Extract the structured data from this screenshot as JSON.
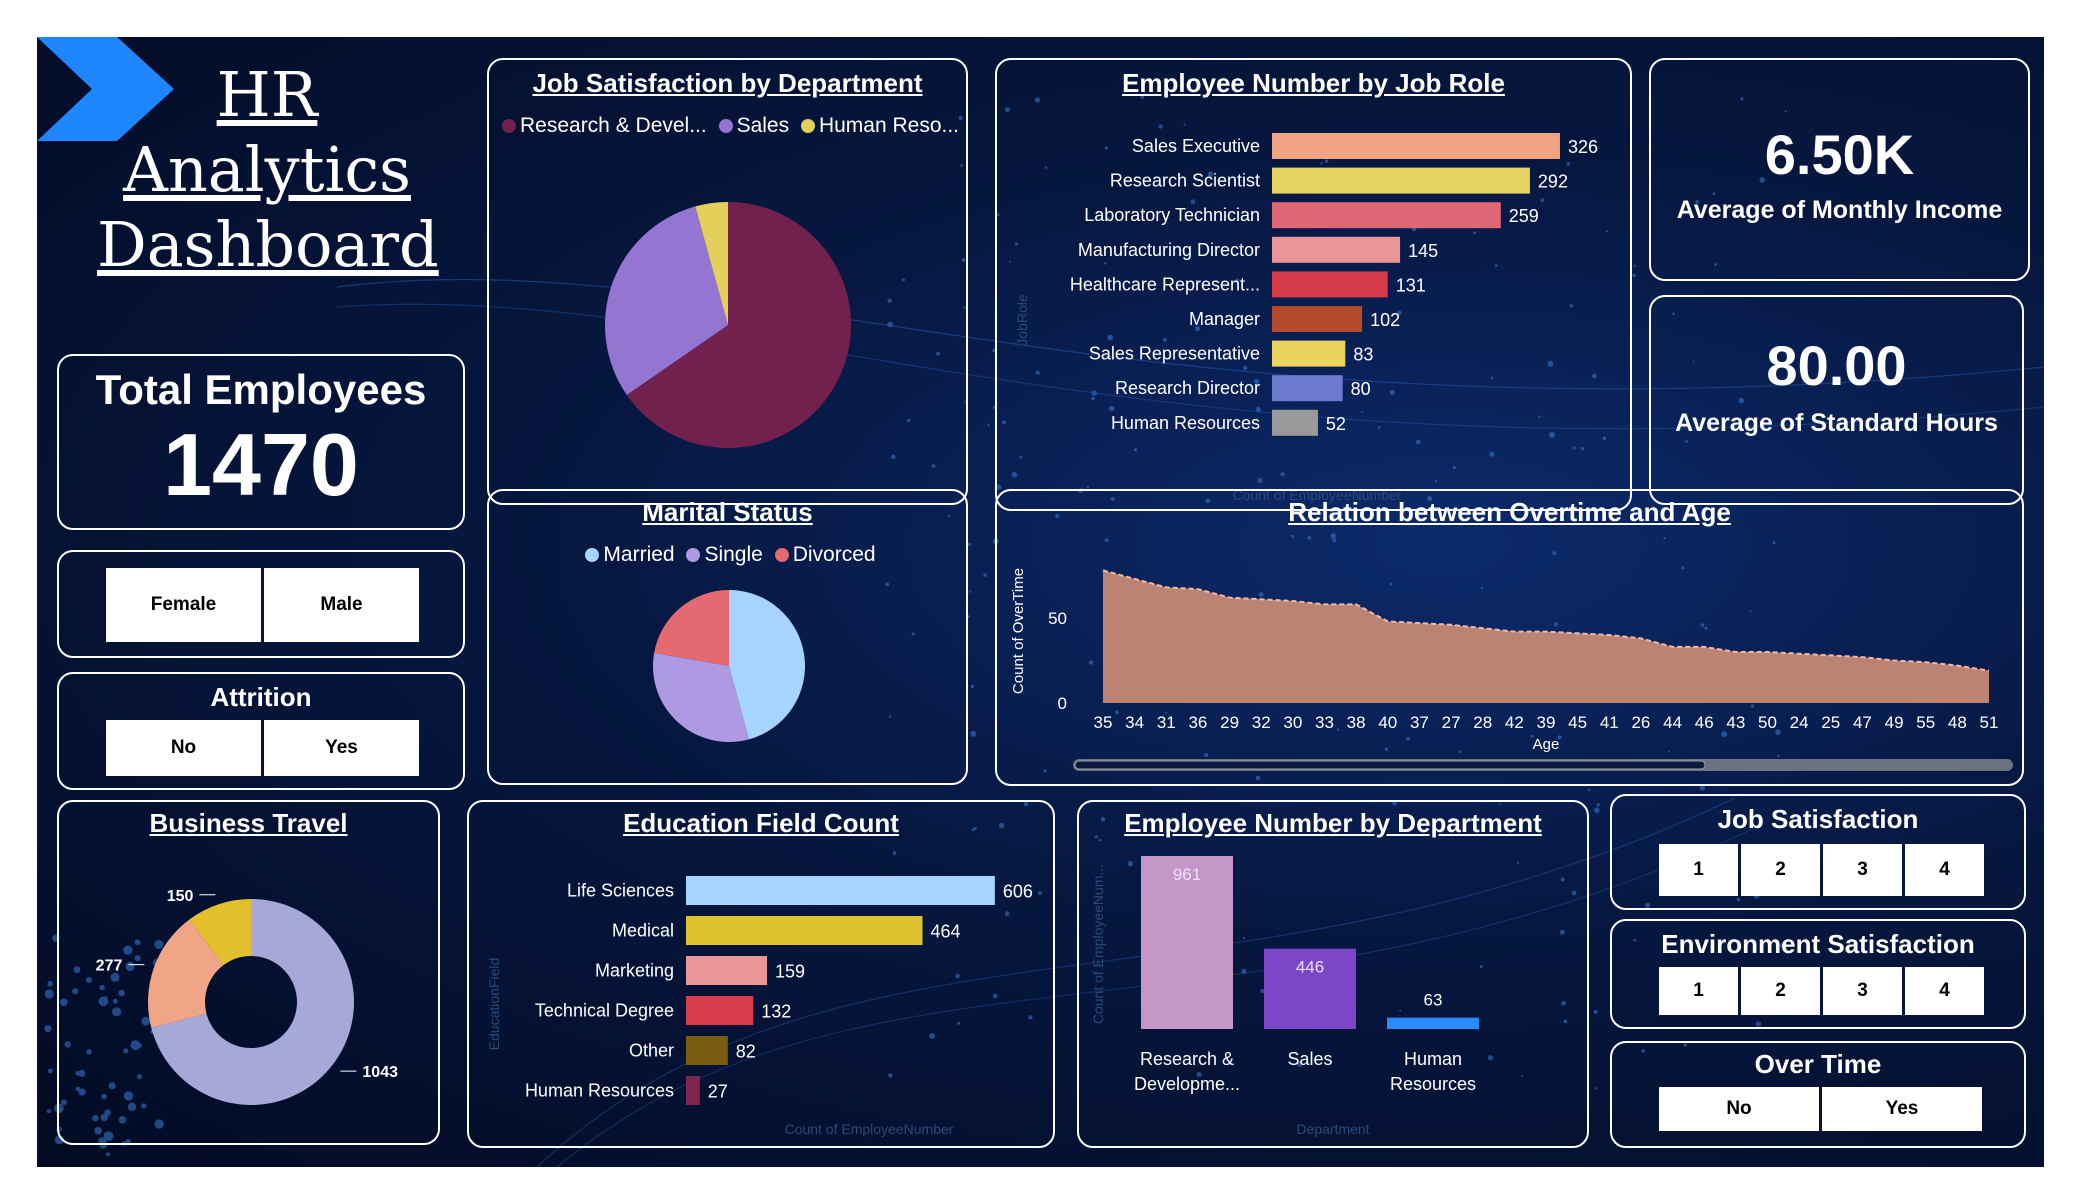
{
  "header": {
    "title_lines": [
      "HR",
      "Analytics",
      "Dashboard"
    ]
  },
  "total_employees": {
    "label": "Total Employees",
    "value": "1470"
  },
  "gender_slicer": {
    "options": [
      "Female",
      "Male"
    ]
  },
  "attrition_slicer": {
    "title": "Attrition",
    "options": [
      "No",
      "Yes"
    ]
  },
  "kpi_income": {
    "value": "6.50K",
    "label": "Average of Monthly Income"
  },
  "kpi_hours": {
    "value": "80.00",
    "label": "Average of Standard Hours"
  },
  "job_satisfaction_slicer": {
    "title": "Job Satisfaction",
    "options": [
      "1",
      "2",
      "3",
      "4"
    ]
  },
  "environment_slicer": {
    "title": "Environment Satisfaction",
    "options": [
      "1",
      "2",
      "3",
      "4"
    ]
  },
  "overtime_slicer": {
    "title": "Over Time",
    "options": [
      "No",
      "Yes"
    ]
  },
  "colors": {
    "background": "#06173f",
    "accent_arrow": "#1e86ff"
  },
  "chart_data": [
    {
      "id": "job_satisfaction_by_department",
      "type": "pie",
      "title": "Job Satisfaction by Department",
      "legend_labels": [
        "Research & Devel...",
        "Sales",
        "Human Reso..."
      ],
      "slices": [
        {
          "name": "Research & Development",
          "value": 961,
          "color": "#72214f"
        },
        {
          "name": "Sales",
          "value": 446,
          "color": "#9575d2"
        },
        {
          "name": "Human Resources",
          "value": 63,
          "color": "#e4cf5a"
        }
      ]
    },
    {
      "id": "employee_number_by_job_role",
      "type": "bar",
      "orientation": "horizontal",
      "title": "Employee Number by Job Role",
      "ylabel": "JobRole",
      "xlabel": "Count of EmployeeNumber",
      "categories": [
        "Sales Executive",
        "Research Scientist",
        "Laboratory Technician",
        "Manufacturing Director",
        "Healthcare Represent...",
        "Manager",
        "Sales Representative",
        "Research Director",
        "Human Resources"
      ],
      "values": [
        326,
        292,
        259,
        145,
        131,
        102,
        83,
        80,
        52
      ],
      "colors": [
        "#f1a384",
        "#e6d260",
        "#df6874",
        "#ea9597",
        "#d63a4a",
        "#b44b2c",
        "#ead35e",
        "#6c7bd0",
        "#9a9a9a"
      ],
      "xlim": [
        0,
        360
      ]
    },
    {
      "id": "marital_status",
      "type": "pie",
      "title": "Marital Status",
      "legend_labels": [
        "Married",
        "Single",
        "Divorced"
      ],
      "slices": [
        {
          "name": "Married",
          "value": 673,
          "color": "#a7d4ff"
        },
        {
          "name": "Single",
          "value": 470,
          "color": "#ad9ae3"
        },
        {
          "name": "Divorced",
          "value": 327,
          "color": "#e26a70"
        }
      ]
    },
    {
      "id": "overtime_vs_age",
      "type": "area",
      "title": "Relation between Overtime and Age",
      "xlabel": "Age",
      "ylabel": "Count of OverTime",
      "categories": [
        "35",
        "34",
        "31",
        "36",
        "29",
        "32",
        "30",
        "33",
        "38",
        "40",
        "37",
        "27",
        "28",
        "42",
        "39",
        "45",
        "41",
        "26",
        "44",
        "46",
        "43",
        "50",
        "24",
        "25",
        "47",
        "49",
        "55",
        "48",
        "51"
      ],
      "values": [
        78,
        73,
        68,
        67,
        62,
        61,
        60,
        58,
        58,
        48,
        47,
        46,
        44,
        42,
        42,
        41,
        40,
        38,
        33,
        33,
        30,
        30,
        29,
        28,
        27,
        25,
        24,
        22,
        19
      ],
      "yticks": [
        0,
        50
      ],
      "ylim": [
        0,
        80
      ],
      "color": "#bc8272"
    },
    {
      "id": "business_travel",
      "type": "pie",
      "variant": "donut",
      "title": "Business Travel",
      "slices": [
        {
          "label": "1043",
          "value": 1043,
          "color": "#a6a8d8"
        },
        {
          "label": "277",
          "value": 277,
          "color": "#f0a587"
        },
        {
          "label": "150",
          "value": 150,
          "color": "#e2c02d"
        }
      ]
    },
    {
      "id": "education_field_count",
      "type": "bar",
      "orientation": "horizontal",
      "title": "Education Field Count",
      "ylabel": "EducationField",
      "xlabel": "Count of EmployeeNumber",
      "categories": [
        "Life Sciences",
        "Medical",
        "Marketing",
        "Technical Degree",
        "Other",
        "Human Resources"
      ],
      "values": [
        606,
        464,
        159,
        132,
        82,
        27
      ],
      "colors": [
        "#a5d4ff",
        "#e0c12f",
        "#ea9697",
        "#d83c4a",
        "#7a5c10",
        "#7e2650"
      ],
      "xlim": [
        0,
        620
      ]
    },
    {
      "id": "employee_number_by_department",
      "type": "bar",
      "orientation": "vertical",
      "title": "Employee Number by Department",
      "xlabel": "Department",
      "ylabel": "Count of EmployeeNum...",
      "categories": [
        [
          "Research &",
          "Developme..."
        ],
        [
          "Sales"
        ],
        [
          "Human",
          "Resources"
        ]
      ],
      "values": [
        961,
        446,
        63
      ],
      "colors": [
        "#c597c9",
        "#7b46c8",
        "#2b8cff"
      ],
      "ylim": [
        0,
        1000
      ]
    }
  ]
}
